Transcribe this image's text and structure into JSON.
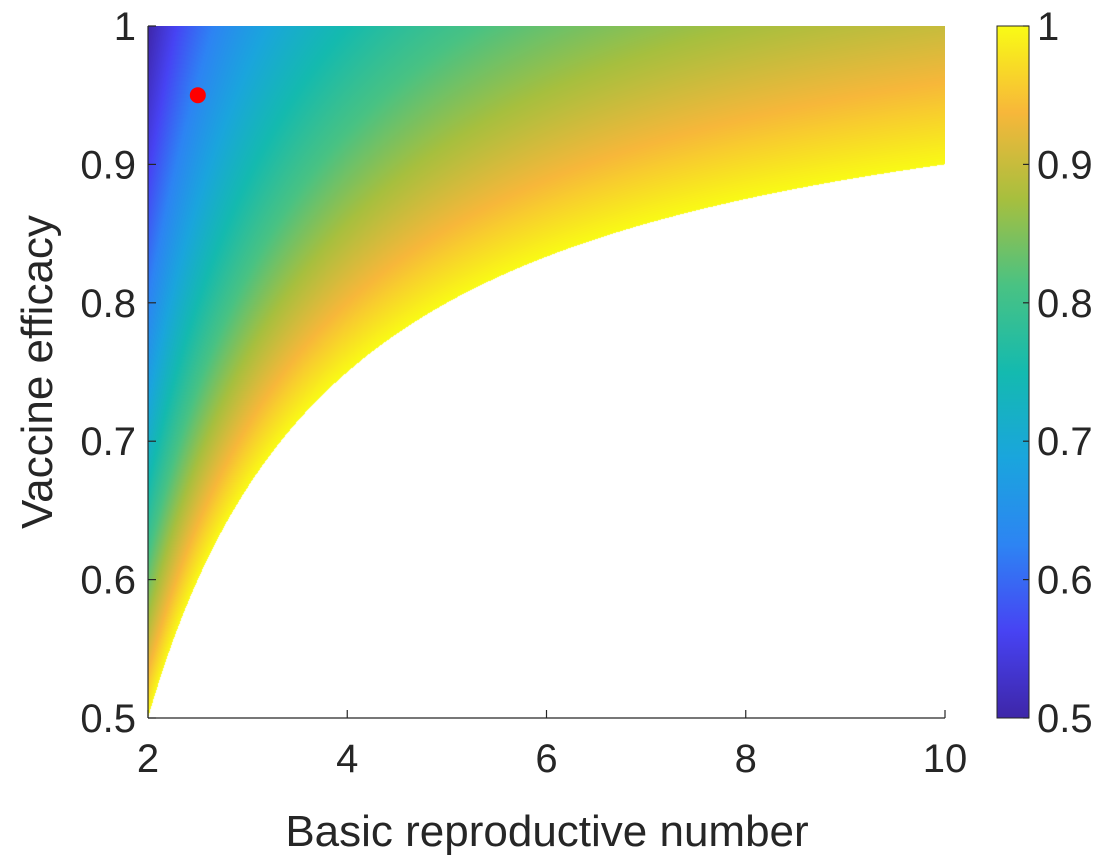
{
  "chart_data": {
    "type": "heatmap",
    "title": "",
    "xlabel": "Basic reproductive number",
    "ylabel": "Vaccine efficacy",
    "xlim": [
      2,
      10
    ],
    "ylim": [
      0.5,
      1
    ],
    "xticks": [
      2,
      4,
      6,
      8,
      10
    ],
    "xtick_labels": [
      "2",
      "4",
      "6",
      "8",
      "10"
    ],
    "yticks": [
      0.5,
      0.6,
      0.7,
      0.8,
      0.9,
      1
    ],
    "ytick_labels": [
      "0.5",
      "0.6",
      "0.7",
      "0.8",
      "0.9",
      "1"
    ],
    "value_definition": "critical vaccination coverage = (1 - 1/R0) / efficacy; blank where value > 1",
    "clim": [
      0.5,
      1
    ],
    "colormap": "parula",
    "colorbar": {
      "ticks": [
        0.5,
        0.6,
        0.7,
        0.8,
        0.9,
        1
      ],
      "tick_labels": [
        "0.5",
        "0.6",
        "0.7",
        "0.8",
        "0.9",
        "1"
      ],
      "placement": "right"
    },
    "highlight_point": {
      "x": 2.5,
      "y": 0.95,
      "color": "#ff0000"
    },
    "grid": false
  }
}
